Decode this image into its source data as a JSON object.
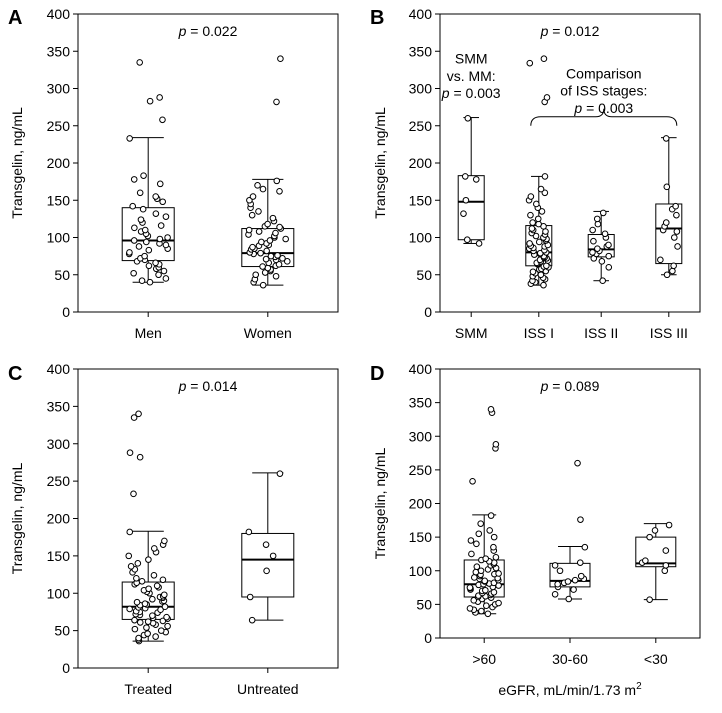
{
  "chart_data": [
    {
      "type": "box",
      "panel_label": "A",
      "ylabel": "Transgelin, ng/mL",
      "xlabel": "",
      "ylim": [
        0,
        400
      ],
      "yticks": [
        0,
        50,
        100,
        150,
        200,
        250,
        300,
        350,
        400
      ],
      "p_prefix": "p",
      "p_value": " = 0.022",
      "groups": [
        {
          "label": "Men",
          "min": 40,
          "q1": 69,
          "median": 96,
          "q3": 140,
          "max": 234,
          "points": [
            40,
            42,
            45,
            50,
            52,
            55,
            58,
            60,
            62,
            64,
            66,
            68,
            70,
            72,
            75,
            78,
            80,
            83,
            85,
            88,
            90,
            92,
            94,
            96,
            98,
            100,
            102,
            105,
            108,
            110,
            113,
            116,
            120,
            124,
            128,
            132,
            138,
            142,
            148,
            152,
            155,
            160,
            172,
            178,
            183,
            233,
            258,
            283,
            288,
            335
          ]
        }
      ]
    },
    {
      "type": "box",
      "panel_label": "A",
      "groups": [
        {
          "label": "Women",
          "min": 36,
          "q1": 61,
          "median": 79,
          "q3": 112,
          "max": 178,
          "points": [
            36,
            40,
            44,
            48,
            50,
            53,
            55,
            57,
            59,
            61,
            62,
            64,
            66,
            68,
            70,
            71,
            72,
            74,
            75,
            76,
            78,
            79,
            80,
            82,
            84,
            85,
            87,
            89,
            90,
            92,
            94,
            96,
            98,
            100,
            102,
            104,
            106,
            108,
            110,
            112,
            114,
            115,
            118,
            122,
            126,
            130,
            135,
            140,
            145,
            150,
            155,
            162,
            165,
            170,
            176,
            282,
            340
          ]
        }
      ]
    },
    {
      "type": "box",
      "panel_label": "B",
      "ylabel": "Transgelin, ng/mL",
      "ylim": [
        0,
        400
      ],
      "yticks": [
        0,
        50,
        100,
        150,
        200,
        250,
        300,
        350,
        400
      ],
      "p_prefix": "p",
      "p_value": " = 0.012",
      "annotation_smm_1": "SMM",
      "annotation_smm_2": "vs. MM:",
      "annotation_smm_p": " = 0.003",
      "annotation_iss_1": "Comparison",
      "annotation_iss_2": "of ISS stages:",
      "annotation_iss_p": " = 0.003",
      "groups": [
        {
          "label": "SMM",
          "min": 92,
          "q1": 97,
          "median": 148,
          "q3": 183,
          "max": 261,
          "points": [
            92,
            97,
            132,
            150,
            178,
            182,
            260
          ]
        },
        {
          "label": "ISS I",
          "min": 36,
          "q1": 62,
          "median": 80,
          "q3": 116,
          "max": 182,
          "points": [
            36,
            38,
            40,
            42,
            44,
            46,
            48,
            50,
            52,
            54,
            55,
            57,
            58,
            60,
            61,
            62,
            64,
            65,
            66,
            68,
            69,
            70,
            72,
            73,
            74,
            75,
            77,
            78,
            79,
            80,
            82,
            83,
            85,
            86,
            88,
            89,
            90,
            92,
            94,
            96,
            98,
            100,
            102,
            104,
            106,
            108,
            110,
            112,
            115,
            118,
            120,
            125,
            130,
            135,
            140,
            145,
            150,
            155,
            160,
            165,
            182,
            282,
            288,
            334,
            340
          ]
        },
        {
          "label": "ISS II",
          "min": 42,
          "q1": 74,
          "median": 84,
          "q3": 104,
          "max": 135,
          "points": [
            42,
            60,
            68,
            72,
            75,
            78,
            80,
            82,
            85,
            88,
            90,
            95,
            100,
            105,
            110,
            118,
            125,
            133
          ]
        },
        {
          "label": "ISS III",
          "min": 50,
          "q1": 65,
          "median": 112,
          "q3": 145,
          "max": 234,
          "points": [
            50,
            55,
            62,
            70,
            88,
            100,
            108,
            110,
            115,
            120,
            130,
            138,
            142,
            168,
            233
          ]
        }
      ]
    },
    {
      "type": "box",
      "panel_label": "C",
      "ylabel": "Transgelin, ng/mL",
      "ylim": [
        0,
        400
      ],
      "yticks": [
        0,
        50,
        100,
        150,
        200,
        250,
        300,
        350,
        400
      ],
      "p_prefix": "p",
      "p_value": " = 0.014",
      "groups": [
        {
          "label": "Treated",
          "min": 36,
          "q1": 65,
          "median": 82,
          "q3": 115,
          "max": 183,
          "points": [
            36,
            38,
            40,
            42,
            44,
            46,
            48,
            50,
            52,
            54,
            56,
            58,
            60,
            61,
            62,
            63,
            64,
            66,
            67,
            68,
            70,
            71,
            72,
            74,
            75,
            76,
            78,
            79,
            80,
            81,
            82,
            84,
            85,
            86,
            88,
            89,
            90,
            92,
            94,
            95,
            96,
            98,
            100,
            102,
            104,
            106,
            108,
            110,
            112,
            114,
            116,
            118,
            120,
            124,
            128,
            132,
            136,
            140,
            145,
            150,
            155,
            160,
            165,
            170,
            182,
            233,
            282,
            288,
            335,
            340
          ]
        },
        {
          "label": "Untreated",
          "min": 64,
          "q1": 95,
          "median": 145,
          "q3": 180,
          "max": 261,
          "points": [
            64,
            95,
            130,
            150,
            165,
            182,
            260
          ]
        }
      ]
    },
    {
      "type": "box",
      "panel_label": "D",
      "ylabel": "Transgelin, ng/mL",
      "xlabel": "eGFR, mL/min/1.73 m",
      "xlabel_sup": "2",
      "ylim": [
        0,
        400
      ],
      "yticks": [
        0,
        50,
        100,
        150,
        200,
        250,
        300,
        350,
        400
      ],
      "p_prefix": "p",
      "p_value": " = 0.089",
      "groups": [
        {
          "label": ">60",
          "min": 36,
          "q1": 61,
          "median": 80,
          "q3": 116,
          "max": 183,
          "points": [
            36,
            38,
            40,
            42,
            44,
            46,
            48,
            50,
            52,
            54,
            56,
            58,
            60,
            61,
            62,
            63,
            64,
            66,
            67,
            68,
            70,
            71,
            72,
            74,
            75,
            76,
            78,
            79,
            80,
            81,
            82,
            84,
            85,
            86,
            88,
            89,
            90,
            92,
            94,
            95,
            96,
            98,
            100,
            102,
            104,
            106,
            108,
            110,
            112,
            114,
            116,
            118,
            120,
            125,
            130,
            135,
            140,
            145,
            150,
            155,
            160,
            170,
            182,
            233,
            282,
            288,
            335,
            340
          ]
        },
        {
          "label": "30-60",
          "min": 58,
          "q1": 76,
          "median": 85,
          "q3": 111,
          "max": 136,
          "points": [
            58,
            65,
            72,
            76,
            80,
            82,
            84,
            86,
            88,
            92,
            100,
            108,
            112,
            135,
            176,
            260
          ]
        },
        {
          "label": "<30",
          "min": 57,
          "q1": 106,
          "median": 111,
          "q3": 150,
          "max": 170,
          "points": [
            57,
            100,
            108,
            112,
            115,
            130,
            150,
            160,
            168
          ]
        }
      ]
    }
  ]
}
